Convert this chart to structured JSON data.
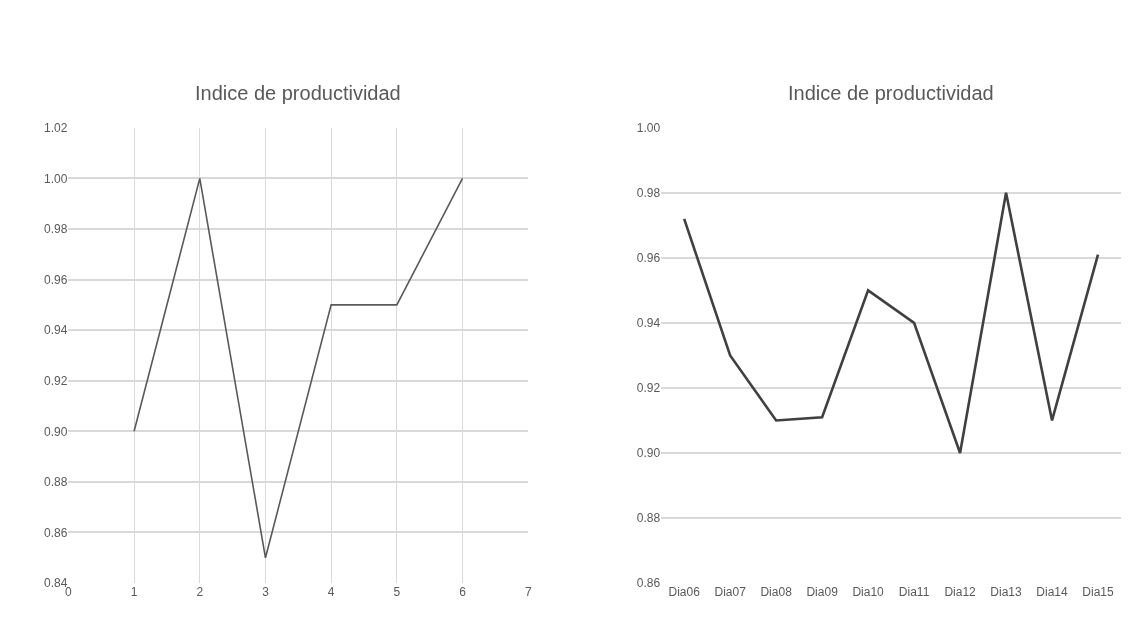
{
  "chart_data": [
    {
      "type": "line",
      "title": "Indice de productividad",
      "x": [
        1,
        2,
        3,
        4,
        5,
        6
      ],
      "series": [
        {
          "color": "#595959",
          "values": [
            0.9,
            1.0,
            0.85,
            0.95,
            0.95,
            1.0
          ]
        }
      ],
      "xlim": [
        0,
        7
      ],
      "xticks": [
        0,
        1,
        2,
        3,
        4,
        5,
        6,
        7
      ],
      "ylim": [
        0.84,
        1.02
      ],
      "yticks": [
        {
          "value": 0.84,
          "label": "0.84"
        },
        {
          "value": 0.86,
          "label": "0.86"
        },
        {
          "value": 0.88,
          "label": "0.88"
        },
        {
          "value": 0.9,
          "label": "0.90"
        },
        {
          "value": 0.92,
          "label": "0.92"
        },
        {
          "value": 0.94,
          "label": "0.94"
        },
        {
          "value": 0.96,
          "label": "0.96"
        },
        {
          "value": 0.98,
          "label": "0.98"
        },
        {
          "value": 1.0,
          "label": "1.00"
        },
        {
          "value": 1.02,
          "label": "1.02"
        }
      ],
      "grid": true,
      "marker": "none",
      "line_style": "solid"
    },
    {
      "type": "line",
      "title": "Indice de productividad",
      "categories": [
        "Dia06",
        "Dia07",
        "Dia08",
        "Dia09",
        "Dia10",
        "Dia11",
        "Dia12",
        "Dia13",
        "Dia14",
        "Dia15"
      ],
      "series": [
        {
          "color": "#404040",
          "values": [
            0.972,
            0.93,
            0.91,
            0.911,
            0.95,
            0.94,
            0.9,
            0.98,
            0.91,
            0.961
          ]
        }
      ],
      "ylim": [
        0.86,
        1.0
      ],
      "yticks": [
        {
          "value": 0.86,
          "label": "0.86"
        },
        {
          "value": 0.88,
          "label": "0.88"
        },
        {
          "value": 0.9,
          "label": "0.90"
        },
        {
          "value": 0.92,
          "label": "0.92"
        },
        {
          "value": 0.94,
          "label": "0.94"
        },
        {
          "value": 0.96,
          "label": "0.96"
        },
        {
          "value": 0.98,
          "label": "0.98"
        },
        {
          "value": 1.0,
          "label": "1.00"
        }
      ],
      "grid": "y",
      "marker": "none",
      "line_style": "solid"
    }
  ]
}
